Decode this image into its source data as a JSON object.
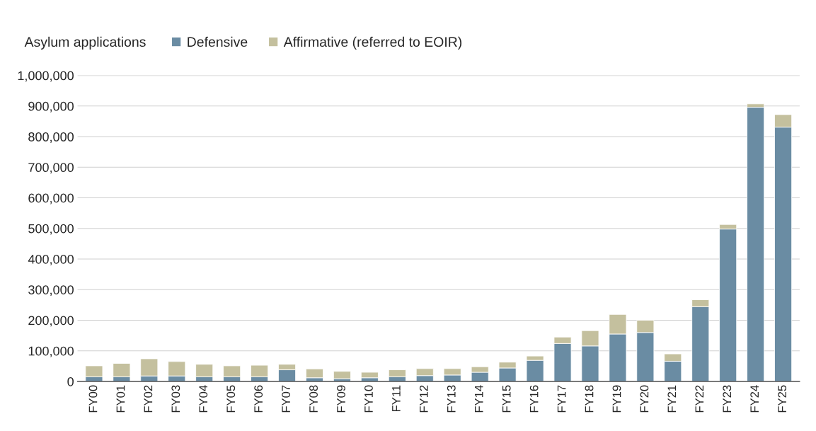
{
  "chart_data": {
    "type": "bar",
    "stacked": true,
    "ylabel": "Asylum applications",
    "categories": [
      "FY00",
      "FY01",
      "FY02",
      "FY03",
      "FY04",
      "FY05",
      "FY06",
      "FY07",
      "FY08",
      "FY09",
      "FY10",
      "FY11",
      "FY12",
      "FY13",
      "FY14",
      "FY15",
      "FY16",
      "FY17",
      "FY18",
      "FY19",
      "FY20",
      "FY21",
      "FY22",
      "FY23",
      "FY24",
      "FY25"
    ],
    "series": [
      {
        "name": "Defensive",
        "color": "#6a8ca3",
        "values": [
          15000,
          15000,
          18000,
          18000,
          15000,
          15000,
          15000,
          38000,
          12000,
          9000,
          12000,
          15000,
          19000,
          21000,
          30000,
          44000,
          69000,
          124000,
          116000,
          155000,
          160000,
          66000,
          244000,
          498000,
          896000,
          831000
        ]
      },
      {
        "name": "Affirmative (referred to EOIR)",
        "color": "#c4c09e",
        "values": [
          36000,
          44000,
          56000,
          47000,
          41000,
          36000,
          38000,
          18000,
          29000,
          24000,
          18000,
          23000,
          23000,
          21000,
          18000,
          19000,
          14000,
          21000,
          50000,
          64000,
          40000,
          24000,
          23000,
          15000,
          11000,
          41000
        ]
      }
    ],
    "ylim": [
      0,
      1000000
    ],
    "yticks": [
      0,
      {
        "value": 100000,
        "label": "100,000"
      },
      {
        "value": 200000,
        "label": "200,000"
      },
      {
        "value": 300000,
        "label": "300,000"
      },
      {
        "value": 400000,
        "label": "400,000"
      },
      {
        "value": 500000,
        "label": "500,000"
      },
      {
        "value": 600000,
        "label": "600,000"
      },
      {
        "value": 700000,
        "label": "700,000"
      },
      {
        "value": 800000,
        "label": "800,000"
      },
      {
        "value": 900000,
        "label": "900,000"
      },
      {
        "value": 1000000,
        "label": "1,000,000"
      }
    ],
    "grid": "y",
    "legend": "top"
  }
}
